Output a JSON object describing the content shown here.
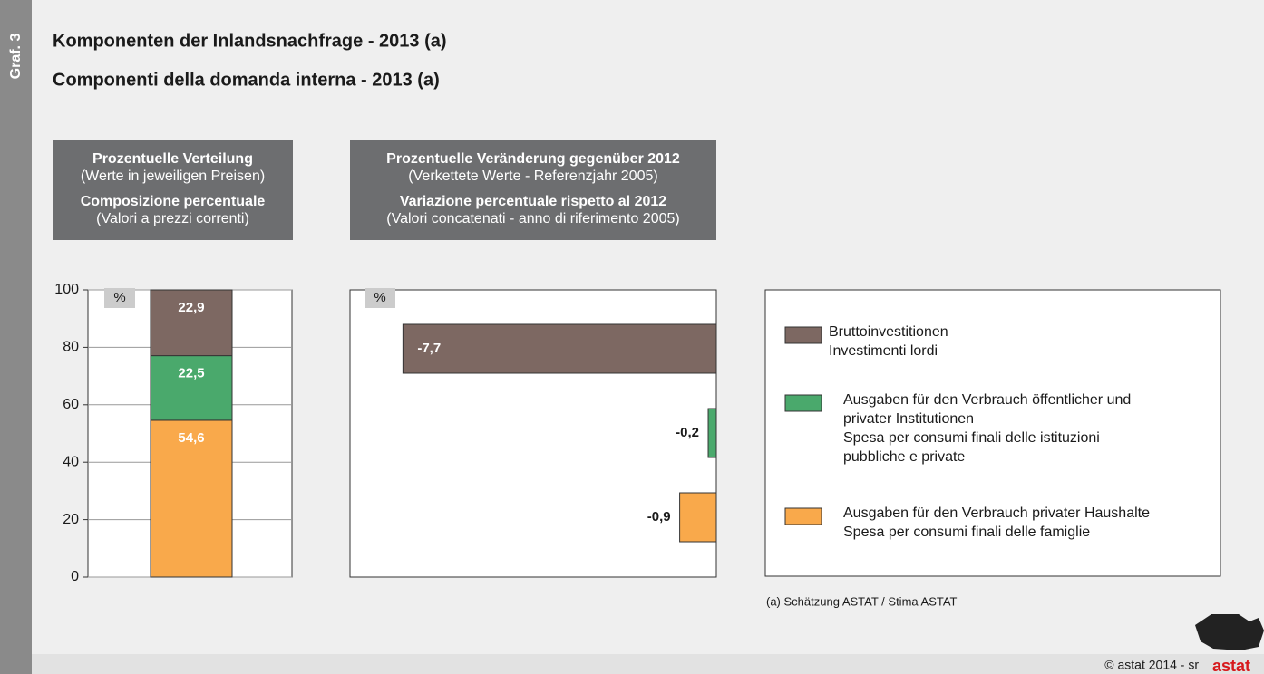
{
  "side_label": "Graf. 3",
  "title": "Komponenten der Inlandsnachfrage - 2013 (a)",
  "subtitle": "Componenti della domanda interna - 2013 (a)",
  "chart_data": [
    {
      "type": "stacked-bar",
      "header": [
        "Prozentuelle Verteilung",
        "(Werte in jeweiligen Preisen)",
        "Composizione percentuale",
        "(Valori a prezzi correnti)"
      ],
      "unit": "%",
      "ylim": [
        0,
        100
      ],
      "yticks": [
        0,
        20,
        40,
        60,
        80,
        100
      ],
      "grid": true,
      "series": [
        {
          "name": [
            "Ausgaben für den Verbrauch privater Haushalte",
            "Spesa per consumi finali delle famiglie"
          ],
          "color": "#f9a94b",
          "values": [
            54.6
          ],
          "value_labels": [
            "54,6"
          ]
        },
        {
          "name": [
            "Ausgaben für den Verbrauch öffentlicher und",
            "privater Institutionen",
            "Spesa per consumi finali delle istituzioni",
            "pubbliche e private"
          ],
          "color": "#4aa96c",
          "values": [
            22.5
          ],
          "value_labels": [
            "22,5"
          ]
        },
        {
          "name": [
            "Bruttoinvestitionen",
            "Investimenti lordi"
          ],
          "color": "#7d6862",
          "values": [
            22.9
          ],
          "value_labels": [
            "22,9"
          ]
        }
      ]
    },
    {
      "type": "hbar",
      "header": [
        "Prozentuelle Veränderung gegenüber 2012",
        "(Verkettete Werte - Referenzjahr 2005)",
        "Variazione percentuale rispetto al 2012",
        "(Valori concatenati - anno di riferimento 2005)"
      ],
      "unit": "%",
      "xlim": [
        -9,
        0
      ],
      "values": [
        -7.7,
        -0.2,
        -0.9
      ],
      "value_labels": [
        "-7,7",
        "-0,2",
        "-0,9"
      ],
      "colors": [
        "#7d6862",
        "#4aa96c",
        "#f9a94b"
      ]
    }
  ],
  "footnote": "(a)  Schätzung ASTAT / Stima ASTAT",
  "copyright": "©  astat 2014 - sr",
  "logo": "astat"
}
